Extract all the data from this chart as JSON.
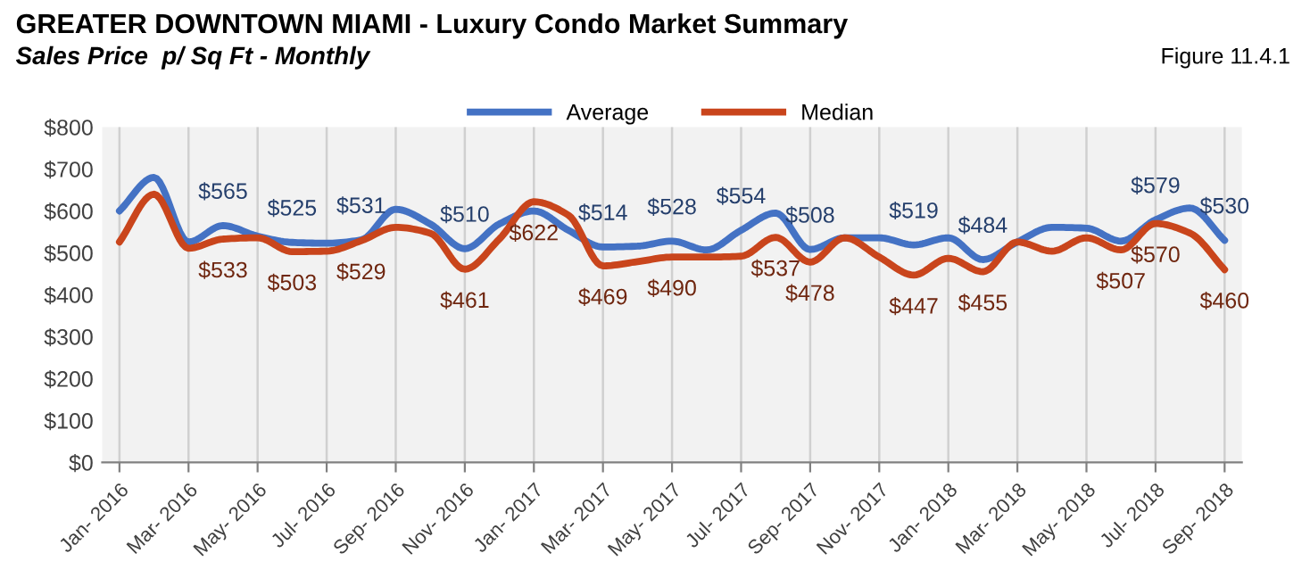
{
  "chart_data": {
    "type": "line",
    "title": "GREATER DOWNTOWN MIAMI - Luxury Condo Market Summary",
    "subtitle": "Sales Price  p/ Sq Ft - Monthly",
    "annotations": [
      "Figure 11.4.1"
    ],
    "categories": [
      "Jan- 2016",
      null,
      "Mar- 2016",
      null,
      "May- 2016",
      null,
      "Jul- 2016",
      null,
      "Sep- 2016",
      null,
      "Nov- 2016",
      null,
      "Jan- 2017",
      null,
      "Mar- 2017",
      null,
      "May- 2017",
      null,
      "Jul- 2017",
      null,
      "Sep- 2017",
      null,
      "Nov- 2017",
      null,
      "Jan- 2018",
      null,
      "Mar- 2018",
      null,
      "May- 2018",
      null,
      "Jul- 2018",
      null,
      "Sep- 2018"
    ],
    "series": [
      {
        "name": "Average",
        "color": "#4472c4",
        "values": [
          600,
          680,
          526,
          565,
          540,
          525,
          523,
          531,
          604,
          569,
          510,
          569,
          600,
          554,
          514,
          516,
          528,
          507,
          554,
          595,
          508,
          536,
          536,
          519,
          536,
          484,
          526,
          561,
          559,
          528,
          579,
          607,
          530
        ],
        "value_labels": [
          null,
          null,
          null,
          "$565",
          null,
          "$525",
          null,
          "$531",
          null,
          null,
          "$510",
          null,
          null,
          null,
          "$514",
          null,
          "$528",
          null,
          "$554",
          null,
          "$508",
          null,
          null,
          "$519",
          null,
          "$484",
          null,
          null,
          null,
          null,
          "$579",
          null,
          "$530"
        ]
      },
      {
        "name": "Median",
        "color": "#c9451c",
        "values": [
          526,
          640,
          511,
          533,
          536,
          503,
          504,
          529,
          561,
          547,
          461,
          533,
          622,
          590,
          469,
          479,
          490,
          490,
          492,
          537,
          478,
          536,
          490,
          447,
          487,
          455,
          526,
          504,
          536,
          507,
          570,
          547,
          460
        ],
        "value_labels": [
          null,
          null,
          null,
          "$533",
          null,
          "$503",
          null,
          "$529",
          null,
          null,
          "$461",
          null,
          "$622",
          null,
          "$469",
          null,
          "$490",
          null,
          null,
          "$537",
          "$478",
          null,
          null,
          "$447",
          null,
          "$455",
          null,
          null,
          null,
          "$507",
          "$570",
          null,
          "$460"
        ]
      }
    ],
    "ylim": [
      0,
      800
    ],
    "yticks": [
      {
        "value": 0,
        "label": "$0"
      },
      {
        "value": 100,
        "label": "$100"
      },
      {
        "value": 200,
        "label": "$200"
      },
      {
        "value": 300,
        "label": "$300"
      },
      {
        "value": 400,
        "label": "$400"
      },
      {
        "value": 500,
        "label": "$500"
      },
      {
        "value": 600,
        "label": "$600"
      },
      {
        "value": 700,
        "label": "$700"
      },
      {
        "value": 800,
        "label": "$800"
      }
    ],
    "grid": "x",
    "legend": "top",
    "marker": "none",
    "line_style": "solid"
  }
}
